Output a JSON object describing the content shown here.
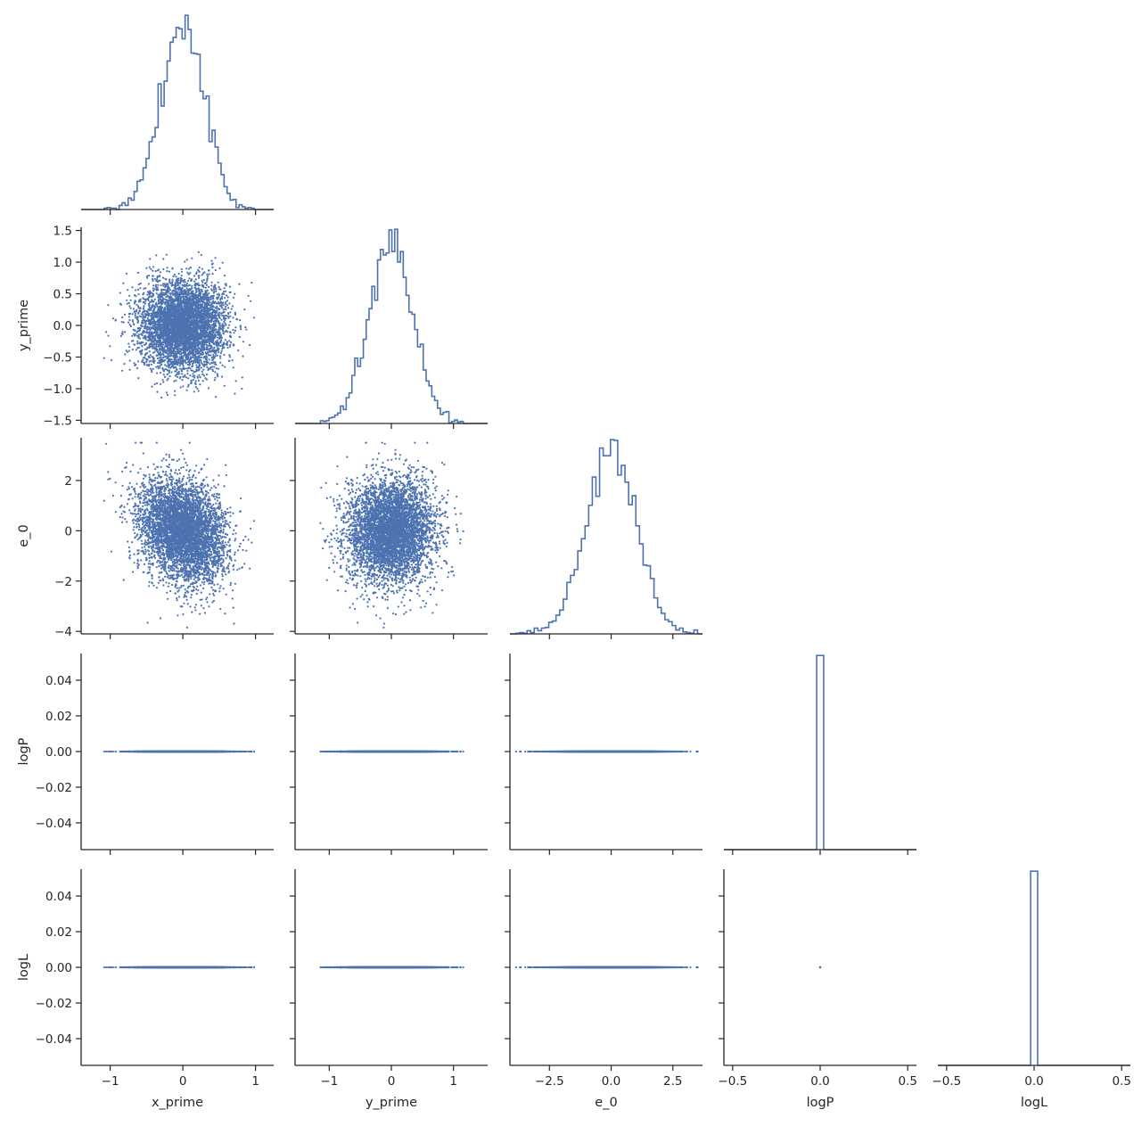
{
  "chart_data": {
    "type": "pairplot",
    "variables": [
      "x_prime",
      "y_prime",
      "e_0",
      "logP",
      "logL"
    ],
    "corner": true,
    "grid": false,
    "color": "#4c72b0",
    "diag_kind": "step-histogram",
    "offdiag_kind": "scatter",
    "n_samples": 5000,
    "axes": {
      "x_prime": {
        "label": "x_prime",
        "lim": [
          -1.4,
          1.25
        ],
        "ticks": [
          -1,
          0,
          1
        ],
        "tick_labels": [
          "−1",
          "0",
          "1"
        ],
        "distribution": {
          "mean": 0.0,
          "sd": 0.3,
          "min": -1.3,
          "max": 1.15
        }
      },
      "y_prime": {
        "label": "y_prime",
        "lim": [
          -1.55,
          1.55
        ],
        "ticks": [
          -1.5,
          -1.0,
          -0.5,
          0.0,
          0.5,
          1.0,
          1.5
        ],
        "tick_labels": [
          "−1.5",
          "−1.0",
          "−0.5",
          "0.0",
          "0.5",
          "1.0",
          "1.5"
        ],
        "x_ticks": [
          -1,
          0,
          1
        ],
        "x_tick_labels": [
          "−1",
          "0",
          "1"
        ],
        "distribution": {
          "mean": 0.0,
          "sd": 0.35,
          "min": -1.43,
          "max": 1.42
        }
      },
      "e_0": {
        "label": "e_0",
        "lim": [
          -4.1,
          3.7
        ],
        "ticks": [
          -4,
          -2,
          0,
          2
        ],
        "tick_labels": [
          "−4",
          "−2",
          "0",
          "2"
        ],
        "x_ticks": [
          -2.5,
          0.0,
          2.5
        ],
        "x_tick_labels": [
          "−2.5",
          "0.0",
          "2.5"
        ],
        "distribution": {
          "mean": 0.0,
          "sd": 1.0,
          "min": -3.85,
          "max": 3.5
        }
      },
      "logP": {
        "label": "logP",
        "lim": [
          -0.055,
          0.055
        ],
        "ticks": [
          -0.04,
          -0.02,
          0.0,
          0.02,
          0.04
        ],
        "tick_labels": [
          "−0.04",
          "−0.02",
          "0.00",
          "0.02",
          "0.04"
        ],
        "x_lim": [
          -0.55,
          0.55
        ],
        "x_ticks": [
          -0.5,
          0.0,
          0.5
        ],
        "x_tick_labels": [
          "−0.5",
          "0.0",
          "0.5"
        ],
        "constant_value": 0.0
      },
      "logL": {
        "label": "logL",
        "lim": [
          -0.055,
          0.055
        ],
        "ticks": [
          -0.04,
          -0.02,
          0.0,
          0.02,
          0.04
        ],
        "tick_labels": [
          "−0.04",
          "−0.02",
          "0.00",
          "0.02",
          "0.04"
        ],
        "x_lim": [
          -0.55,
          0.55
        ],
        "x_ticks": [
          -0.5,
          0.0,
          0.5
        ],
        "x_tick_labels": [
          "−0.5",
          "0.0",
          "0.5"
        ],
        "constant_value": 0.0
      }
    },
    "correlations": {
      "x_prime__y_prime": 0.0,
      "x_prime__e_0": -0.25,
      "y_prime__e_0": 0.0
    }
  }
}
